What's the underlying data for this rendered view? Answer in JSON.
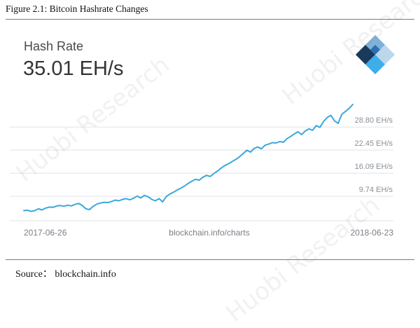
{
  "figure": {
    "caption": "Figure 2.1: Bitcoin Hashrate Changes",
    "source": "Source：  blockchain.info"
  },
  "card": {
    "title": "Hash Rate",
    "value": "35.01 EH/s",
    "logo_icon": "blockchain-logo-icon",
    "logo_colors": [
      "#1a3a5c",
      "#2b6fb4",
      "#7fb0d8",
      "#3daee9",
      "#bcd6ea"
    ]
  },
  "watermark": [
    "Huobi Research",
    "Huobi Research",
    "Huobi Research"
  ],
  "chart_data": {
    "type": "line",
    "title": "",
    "xlabel": "",
    "ylabel": "",
    "x_start_label": "2017-06-26",
    "x_center_label": "blockchain.info/charts",
    "x_end_label": "2018-06-23",
    "y_ticks": [
      9.74,
      16.09,
      22.45,
      28.8
    ],
    "y_tick_labels": [
      "9.74 EH/s",
      "16.09 EH/s",
      "22.45 EH/s",
      "28.80 EH/s"
    ],
    "ylim": [
      3.4,
      35.2
    ],
    "grid": true,
    "color": "#3aa8dc",
    "series": [
      {
        "values": [
          5.8,
          5.9,
          5.6,
          5.8,
          6.3,
          6.0,
          6.5,
          6.8,
          6.7,
          7.1,
          7.2,
          7.0,
          7.3,
          7.1,
          7.5,
          7.8,
          7.2,
          6.3,
          6.1,
          7.0,
          7.6,
          7.9,
          8.1,
          8.0,
          8.3,
          8.7,
          8.5,
          8.9,
          9.1,
          8.8,
          9.2,
          9.8,
          9.3,
          10.0,
          9.6,
          8.9,
          8.5,
          9.1,
          8.2,
          9.7,
          10.4,
          10.9,
          11.5,
          12.0,
          12.6,
          13.3,
          13.9,
          14.4,
          14.2,
          15.0,
          15.5,
          15.2,
          16.0,
          16.7,
          17.5,
          18.2,
          18.7,
          19.3,
          19.9,
          20.6,
          21.5,
          22.4,
          21.9,
          22.9,
          23.3,
          22.8,
          23.8,
          24.1,
          24.5,
          24.4,
          24.8,
          24.6,
          25.6,
          26.2,
          26.9,
          27.5,
          26.7,
          27.7,
          28.3,
          27.9,
          29.2,
          28.7,
          30.3,
          31.4,
          32.0,
          30.5,
          29.8,
          32.3,
          33.1,
          33.9,
          35.0
        ]
      }
    ]
  }
}
